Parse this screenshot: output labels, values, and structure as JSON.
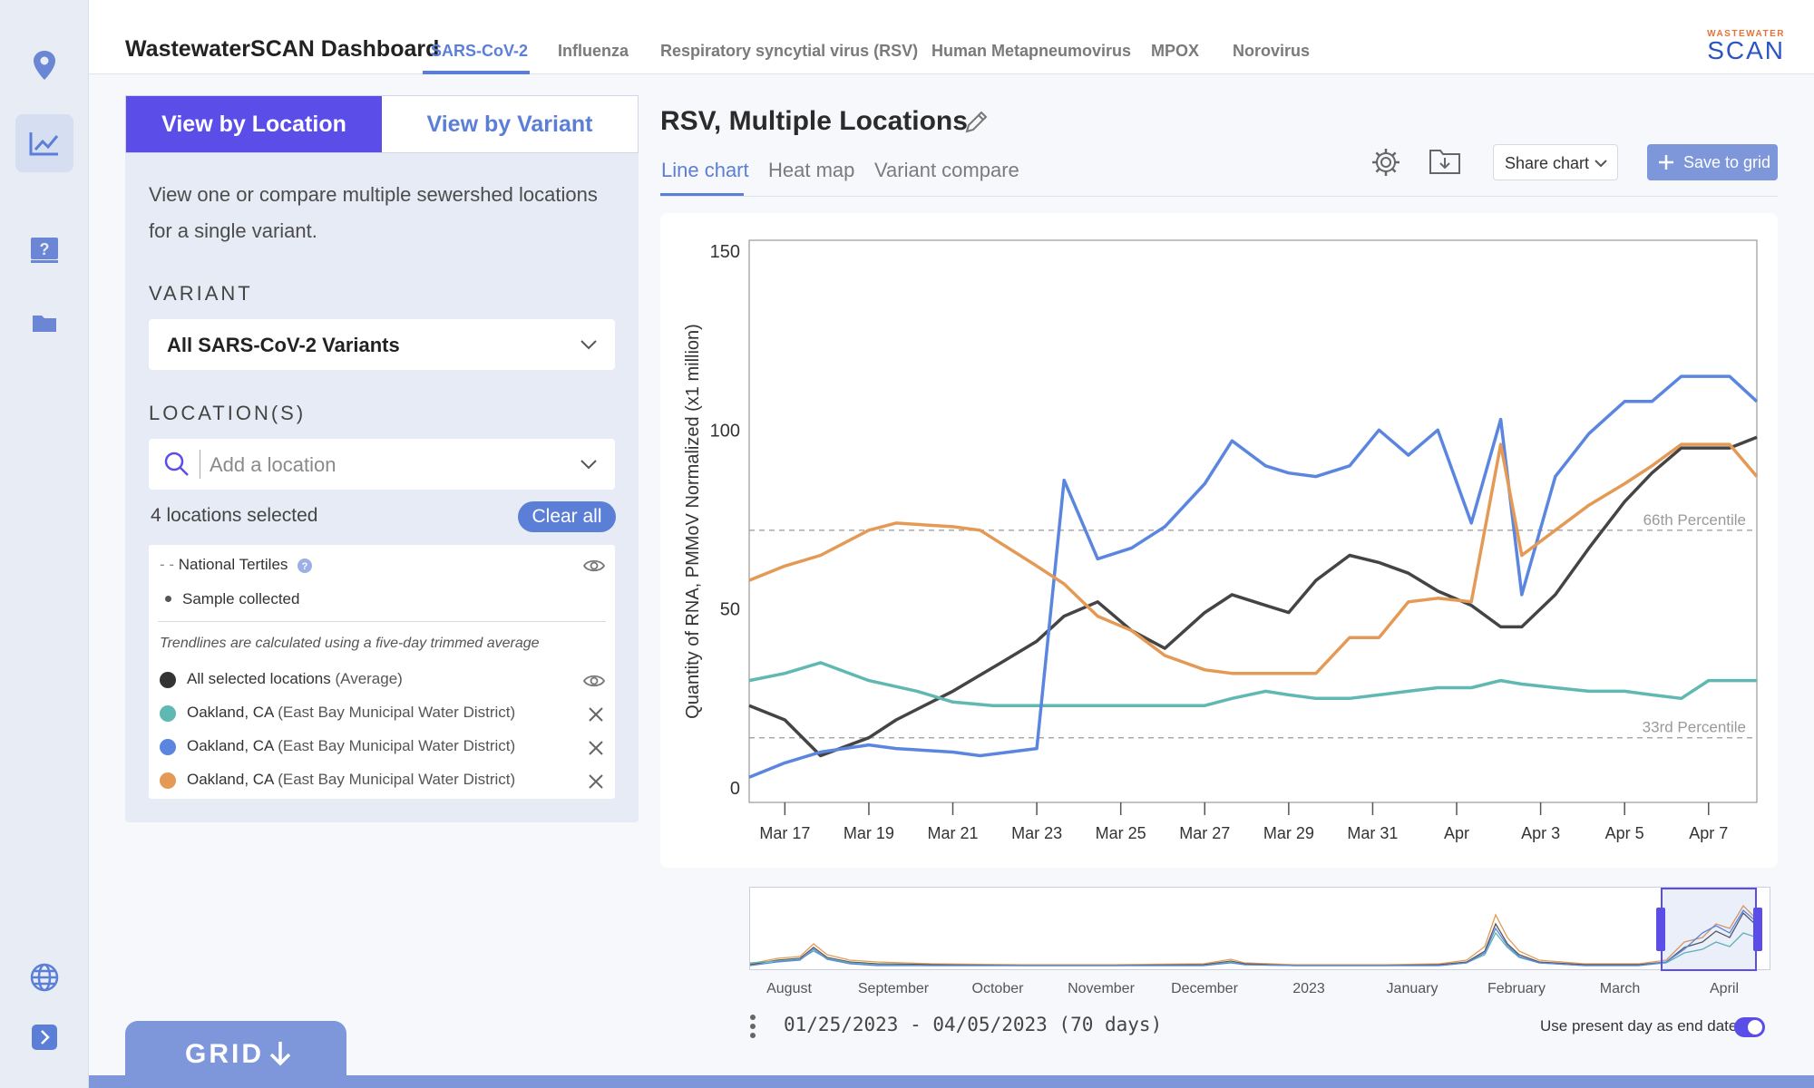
{
  "app": {
    "title": "WastewaterSCAN Dashboard",
    "logo_top": "WASTEWATER",
    "logo_bottom": "SCAN"
  },
  "nav_tabs": [
    {
      "label": "SARS-CoV-2",
      "active": true
    },
    {
      "label": "Influenza"
    },
    {
      "label": "Respiratory syncytial virus (RSV)"
    },
    {
      "label": "Human Metapneumovirus"
    },
    {
      "label": "MPOX"
    },
    {
      "label": "Norovirus"
    }
  ],
  "rail_icons": [
    "location-pin-icon",
    "chart-icon",
    "help-book-icon",
    "folder-icon",
    "globe-icon",
    "expand-chevron-icon"
  ],
  "sidebar": {
    "view_tabs": {
      "location": "View by Location",
      "variant": "View by Variant"
    },
    "description": "View one or compare multiple sewershed locations for a single variant.",
    "variant_label": "VARIANT",
    "variant_value": "All SARS-CoV-2 Variants",
    "location_label": "LOCATION(S)",
    "location_placeholder": "Add a location",
    "count_text": "4 locations selected",
    "clear_all": "Clear all",
    "legend": {
      "national_tertiles": "National Tertiles",
      "sample_collected": "Sample collected",
      "note": "Trendlines are calculated using a five-day trimmed average",
      "average_name": "All selected locations",
      "average_paren": "(Average)",
      "items": [
        {
          "name": "Oakland, CA",
          "detail": "(East Bay Municipal Water District)",
          "color": "#5fb8b1"
        },
        {
          "name": "Oakland, CA",
          "detail": "(East Bay Municipal Water District)",
          "color": "#5b86e0"
        },
        {
          "name": "Oakland, CA",
          "detail": "(East Bay Municipal Water District)",
          "color": "#e49a55"
        }
      ]
    }
  },
  "main": {
    "title": "RSV, Multiple Locations",
    "chart_tabs": [
      "Line chart",
      "Heat map",
      "Variant compare"
    ],
    "share_label": "Share chart",
    "save_label": "Save to grid"
  },
  "chart_data": {
    "type": "line",
    "ylabel": "Quantity of RNA, PMMoV Normalized (x1 million)",
    "ylim": [
      0,
      150
    ],
    "yticks": [
      0,
      50,
      100,
      150
    ],
    "xlim": [
      0,
      24
    ],
    "xticks": [
      {
        "x": 0.85,
        "label": "Mar 17"
      },
      {
        "x": 2.85,
        "label": "Mar 19"
      },
      {
        "x": 4.85,
        "label": "Mar 21"
      },
      {
        "x": 6.85,
        "label": "Mar 23"
      },
      {
        "x": 8.85,
        "label": "Mar 25"
      },
      {
        "x": 10.85,
        "label": "Mar 27"
      },
      {
        "x": 12.85,
        "label": "Mar 29"
      },
      {
        "x": 14.85,
        "label": "Mar 31"
      },
      {
        "x": 16.85,
        "label": "Apr"
      },
      {
        "x": 18.85,
        "label": "Apr 3"
      },
      {
        "x": 20.85,
        "label": "Apr 5"
      },
      {
        "x": 22.85,
        "label": "Apr 7"
      }
    ],
    "reference_lines": [
      {
        "label": "66th Percentile",
        "y": 72
      },
      {
        "label": "33rd Percentile",
        "y": 14
      }
    ],
    "series": [
      {
        "color": "#444444",
        "x": [
          0,
          0.85,
          1.7,
          2.85,
          3.5,
          4.85,
          6,
          6.85,
          7.5,
          8.3,
          9.1,
          9.9,
          10.85,
          11.5,
          12.3,
          12.85,
          13.5,
          14.3,
          15,
          15.7,
          16.4,
          17.2,
          17.9,
          18.4,
          19.2,
          20,
          20.85,
          21.5,
          22.2,
          22.85,
          23.35,
          24
        ],
        "y": [
          23,
          19,
          9,
          14,
          19,
          27,
          35,
          41,
          48,
          52,
          44,
          39,
          49,
          54,
          51,
          49,
          58,
          65,
          63,
          60,
          55,
          51,
          45,
          45,
          54,
          67,
          80,
          88,
          95,
          95,
          95,
          98
        ]
      },
      {
        "color": "#5fb8b1",
        "x": [
          0,
          0.85,
          1.7,
          2.85,
          4,
          4.85,
          5.8,
          6.85,
          8,
          9.5,
          10.85,
          11.5,
          12.3,
          12.85,
          13.5,
          14.3,
          15,
          15.7,
          16.4,
          17.2,
          17.9,
          18.4,
          19.2,
          20,
          20.85,
          21.5,
          22.2,
          22.85,
          23.35,
          24
        ],
        "y": [
          30,
          32,
          35,
          30,
          27,
          24,
          23,
          23,
          23,
          23,
          23,
          25,
          27,
          26,
          25,
          25,
          26,
          27,
          28,
          28,
          30,
          29,
          28,
          27,
          27,
          26,
          25,
          30,
          30,
          30
        ]
      },
      {
        "color": "#5b86e0",
        "x": [
          0,
          0.85,
          1.7,
          2.85,
          3.5,
          4.85,
          5.5,
          6.85,
          7.5,
          8.3,
          9.1,
          9.9,
          10.85,
          11.5,
          12.3,
          12.85,
          13.5,
          14.3,
          15,
          15.7,
          16.4,
          17.2,
          17.9,
          18.4,
          19.2,
          20,
          20.85,
          21.5,
          22.2,
          22.85,
          23.35,
          24
        ],
        "y": [
          3,
          7,
          10,
          12,
          11,
          10,
          9,
          11,
          86,
          64,
          67,
          73,
          85,
          97,
          90,
          88,
          87,
          90,
          100,
          93,
          100,
          74,
          103,
          54,
          87,
          99,
          108,
          108,
          115,
          115,
          115,
          108
        ]
      },
      {
        "color": "#e49a55",
        "x": [
          0,
          0.85,
          1.7,
          2.85,
          3.5,
          4.85,
          5.5,
          6.85,
          7.5,
          8.3,
          9.1,
          9.9,
          10.85,
          11.5,
          12.3,
          12.85,
          13.5,
          14.3,
          15,
          15.7,
          16.4,
          17.2,
          17.9,
          18.4,
          19.2,
          20,
          20.85,
          21.5,
          22.2,
          22.85,
          23.35,
          24
        ],
        "y": [
          58,
          62,
          65,
          72,
          74,
          73,
          72,
          62,
          57,
          48,
          44,
          37,
          33,
          32,
          32,
          32,
          32,
          42,
          42,
          52,
          53,
          52,
          96,
          65,
          72,
          79,
          85,
          90,
          96,
          96,
          96,
          87
        ]
      }
    ]
  },
  "brush": {
    "ticks": [
      "August",
      "September",
      "October",
      "November",
      "December",
      "2023",
      "January",
      "February",
      "March",
      "April"
    ],
    "date_range": "01/25/2023 - 04/05/2023 (70 days)",
    "present_day_label": "Use present day as end date"
  },
  "grid_button": "GRID"
}
